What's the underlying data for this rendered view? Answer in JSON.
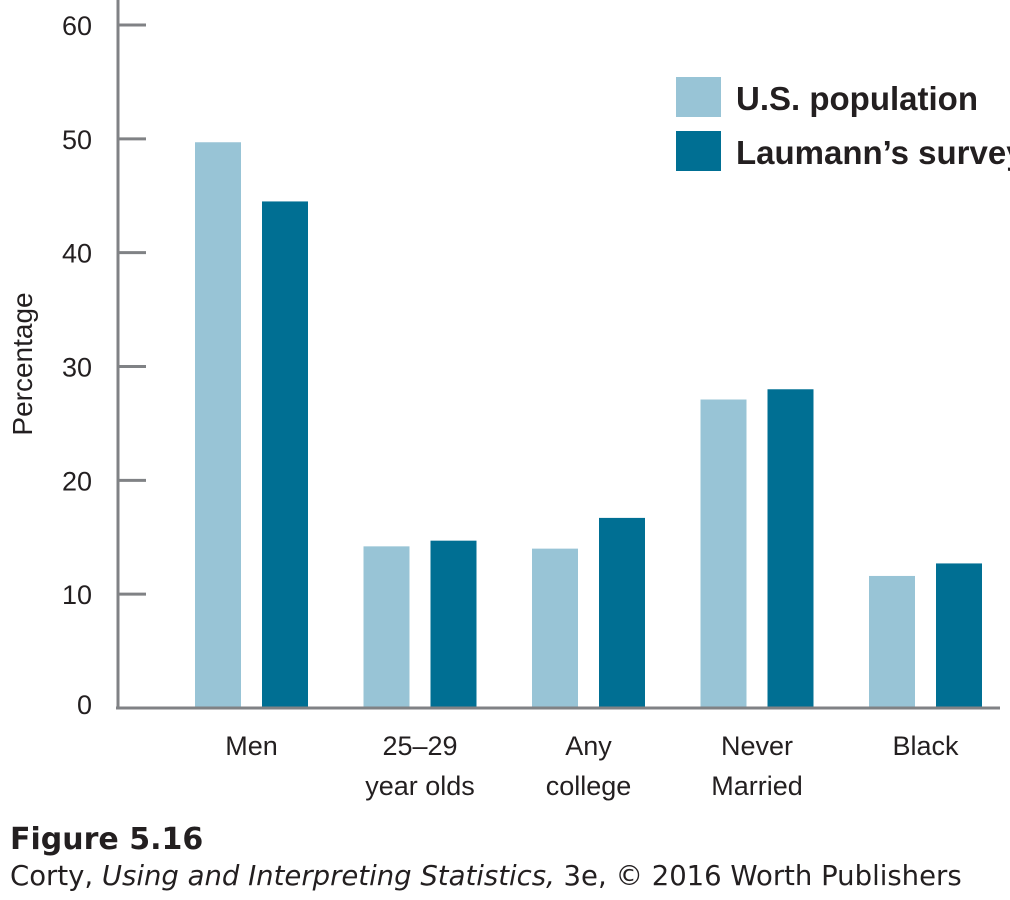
{
  "chart_data": {
    "type": "bar",
    "title": "",
    "xlabel": "",
    "ylabel": "Percentage",
    "ylim": [
      0,
      60
    ],
    "yticks": [
      0,
      10,
      20,
      30,
      40,
      50,
      60
    ],
    "grid": false,
    "legend_position": "top-right",
    "categories": [
      [
        "Men"
      ],
      [
        "25–29",
        "year olds"
      ],
      [
        "Any",
        "college"
      ],
      [
        "Never",
        "Married"
      ],
      [
        "Black"
      ]
    ],
    "series": [
      {
        "name": "U.S. population",
        "color": "#98c4d6",
        "values": [
          49.7,
          14.2,
          14.0,
          27.1,
          11.6
        ]
      },
      {
        "name": "Laumann’s survey",
        "color": "#006f93",
        "values": [
          44.5,
          14.7,
          16.7,
          28.0,
          12.7
        ]
      }
    ]
  },
  "caption": {
    "figure": "Figure 5.16",
    "source_prefix": "Corty, ",
    "source_title": "Using and Interpreting Statistics,",
    "source_suffix": " 3e, © 2016 Worth Publishers"
  }
}
